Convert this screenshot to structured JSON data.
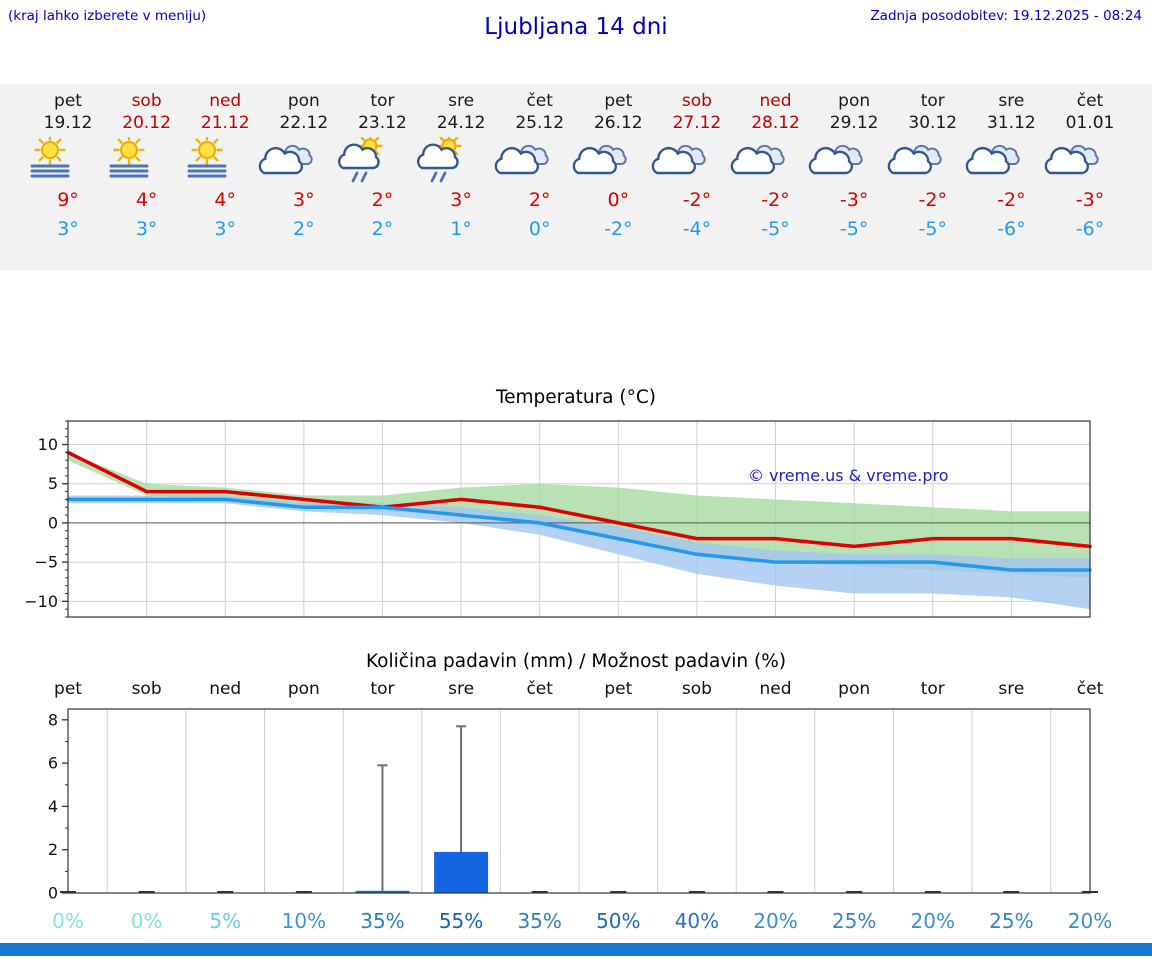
{
  "header": {
    "note": "(kraj lahko izberete v meniju)",
    "title": "Ljubljana 14 dni",
    "updated": "Zadnja posodobitev: 19.12.2025 - 08:24"
  },
  "colors": {
    "accent_blue": "#0000cc",
    "weekend_red": "#c00000",
    "weekday_black": "#1a1a1a",
    "tmax_red": "#dd0000",
    "tmin_blue": "#2299ee",
    "strip_bg": "#f2f2f2",
    "footer_bar": "#1777d4"
  },
  "forecast": {
    "days": [
      {
        "name": "pet",
        "date": "19.12",
        "weekend": false,
        "icon": "sun-fog",
        "tmax": "9°",
        "tmin": "3°"
      },
      {
        "name": "sob",
        "date": "20.12",
        "weekend": true,
        "icon": "sun-fog",
        "tmax": "4°",
        "tmin": "3°"
      },
      {
        "name": "ned",
        "date": "21.12",
        "weekend": true,
        "icon": "sun-fog",
        "tmax": "4°",
        "tmin": "3°"
      },
      {
        "name": "pon",
        "date": "22.12",
        "weekend": false,
        "icon": "cloudy",
        "tmax": "3°",
        "tmin": "2°"
      },
      {
        "name": "tor",
        "date": "23.12",
        "weekend": false,
        "icon": "sun-sleet",
        "tmax": "2°",
        "tmin": "2°"
      },
      {
        "name": "sre",
        "date": "24.12",
        "weekend": false,
        "icon": "sun-sleet",
        "tmax": "3°",
        "tmin": "1°"
      },
      {
        "name": "čet",
        "date": "25.12",
        "weekend": false,
        "icon": "cloudy",
        "tmax": "2°",
        "tmin": "0°"
      },
      {
        "name": "pet",
        "date": "26.12",
        "weekend": false,
        "icon": "cloudy",
        "tmax": "0°",
        "tmin": "-2°"
      },
      {
        "name": "sob",
        "date": "27.12",
        "weekend": true,
        "icon": "cloudy",
        "tmax": "-2°",
        "tmin": "-4°"
      },
      {
        "name": "ned",
        "date": "28.12",
        "weekend": true,
        "icon": "cloudy",
        "tmax": "-2°",
        "tmin": "-5°"
      },
      {
        "name": "pon",
        "date": "29.12",
        "weekend": false,
        "icon": "cloudy",
        "tmax": "-3°",
        "tmin": "-5°"
      },
      {
        "name": "tor",
        "date": "30.12",
        "weekend": false,
        "icon": "cloudy",
        "tmax": "-2°",
        "tmin": "-5°"
      },
      {
        "name": "sre",
        "date": "31.12",
        "weekend": false,
        "icon": "cloudy",
        "tmax": "-2°",
        "tmin": "-6°"
      },
      {
        "name": "čet",
        "date": "01.01",
        "weekend": false,
        "icon": "cloudy",
        "tmax": "-3°",
        "tmin": "-6°"
      }
    ]
  },
  "chart_data": [
    {
      "type": "line",
      "title": "Temperatura (°C)",
      "x": [
        "19.12",
        "20.12",
        "21.12",
        "22.12",
        "23.12",
        "24.12",
        "25.12",
        "26.12",
        "27.12",
        "28.12",
        "29.12",
        "30.12",
        "31.12",
        "01.01"
      ],
      "series": [
        {
          "name": "max-temperature",
          "color": "#dd0000",
          "values": [
            9,
            4,
            4,
            3,
            2,
            3,
            2,
            0,
            -2,
            -2,
            -3,
            -2,
            -2,
            -3
          ]
        },
        {
          "name": "min-temperature",
          "color": "#2299ee",
          "values": [
            3,
            3,
            3,
            2,
            2,
            1,
            0,
            -2,
            -4,
            -5,
            -5,
            -5,
            -6,
            -6
          ]
        }
      ],
      "bands": [
        {
          "name": "max-temperature-range",
          "color": "#a6dba0",
          "opacity": 0.8,
          "upper": [
            9,
            5,
            4.5,
            3.5,
            3.5,
            4.5,
            5,
            4.5,
            3.5,
            3,
            2.5,
            2,
            1.5,
            1.5
          ],
          "lower": [
            8,
            3.5,
            3,
            2,
            1.5,
            1,
            -0.5,
            -2,
            -4,
            -5,
            -5.5,
            -6,
            -6.5,
            -7
          ]
        },
        {
          "name": "min-temperature-range",
          "color": "#a3c6f0",
          "opacity": 0.8,
          "upper": [
            3.5,
            3.5,
            3.5,
            2.5,
            2.5,
            2,
            1,
            -0.5,
            -2.5,
            -3.5,
            -4,
            -4,
            -4.5,
            -4.5
          ],
          "lower": [
            2.5,
            2.5,
            2.5,
            1.5,
            1,
            0,
            -1.5,
            -4,
            -6.5,
            -8,
            -9,
            -9,
            -9.5,
            -11
          ]
        }
      ],
      "ylim": [
        -12,
        13
      ],
      "yticks": [
        -10,
        -5,
        0,
        5,
        10
      ],
      "grid": true,
      "watermark": "© vreme.us & vreme.pro"
    },
    {
      "type": "bar",
      "title": "Količina padavin (mm) / Možnost padavin (%)",
      "categories": [
        "pet",
        "sob",
        "ned",
        "pon",
        "tor",
        "sre",
        "čet",
        "pet",
        "sob",
        "ned",
        "pon",
        "tor",
        "sre",
        "čet"
      ],
      "values": [
        0,
        0,
        0,
        0,
        0.1,
        1.9,
        0,
        0,
        0,
        0,
        0,
        0,
        0,
        0
      ],
      "whiskers": [
        0,
        0,
        0,
        0,
        5.9,
        7.7,
        0,
        0,
        0,
        0,
        0,
        0,
        0,
        0
      ],
      "ylim": [
        0,
        8.5
      ],
      "yticks": [
        0,
        2,
        4,
        6,
        8
      ],
      "bar_color": "#1565e0",
      "whisker_color": "#6e6e6e",
      "probabilities": [
        {
          "label": "0%",
          "color": "#7fe3e3"
        },
        {
          "label": "0%",
          "color": "#7fe3e3"
        },
        {
          "label": "5%",
          "color": "#66cfdc"
        },
        {
          "label": "10%",
          "color": "#3f96c9"
        },
        {
          "label": "35%",
          "color": "#2c80c0"
        },
        {
          "label": "55%",
          "color": "#1a5fb0"
        },
        {
          "label": "35%",
          "color": "#2c80c0"
        },
        {
          "label": "50%",
          "color": "#1f68b5"
        },
        {
          "label": "40%",
          "color": "#2774ba"
        },
        {
          "label": "20%",
          "color": "#3b8fc7"
        },
        {
          "label": "25%",
          "color": "#3485c2"
        },
        {
          "label": "20%",
          "color": "#3b8fc7"
        },
        {
          "label": "25%",
          "color": "#3485c2"
        },
        {
          "label": "20%",
          "color": "#3b8fc7"
        }
      ]
    }
  ]
}
